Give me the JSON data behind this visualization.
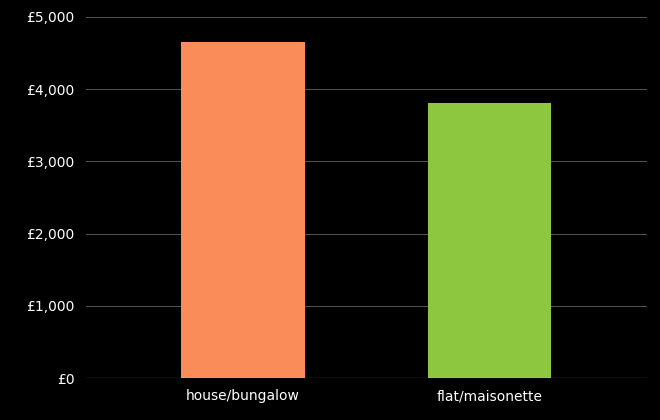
{
  "categories": [
    "house/bungalow",
    "flat/maisonette"
  ],
  "values": [
    4650,
    3800
  ],
  "bar_colors": [
    "#FA8C5A",
    "#8DC63F"
  ],
  "background_color": "#000000",
  "text_color": "#ffffff",
  "ylim": [
    0,
    5000
  ],
  "yticks": [
    0,
    1000,
    2000,
    3000,
    4000,
    5000
  ],
  "ytick_labels": [
    "£0",
    "£1,000",
    "£2,000",
    "£3,000",
    "£4,000",
    "£5,000"
  ],
  "grid_color": "#555555",
  "bar_width": 0.22,
  "x_positions": [
    0.28,
    0.72
  ],
  "xlim": [
    0,
    1
  ],
  "tick_fontsize": 10,
  "label_fontsize": 10
}
